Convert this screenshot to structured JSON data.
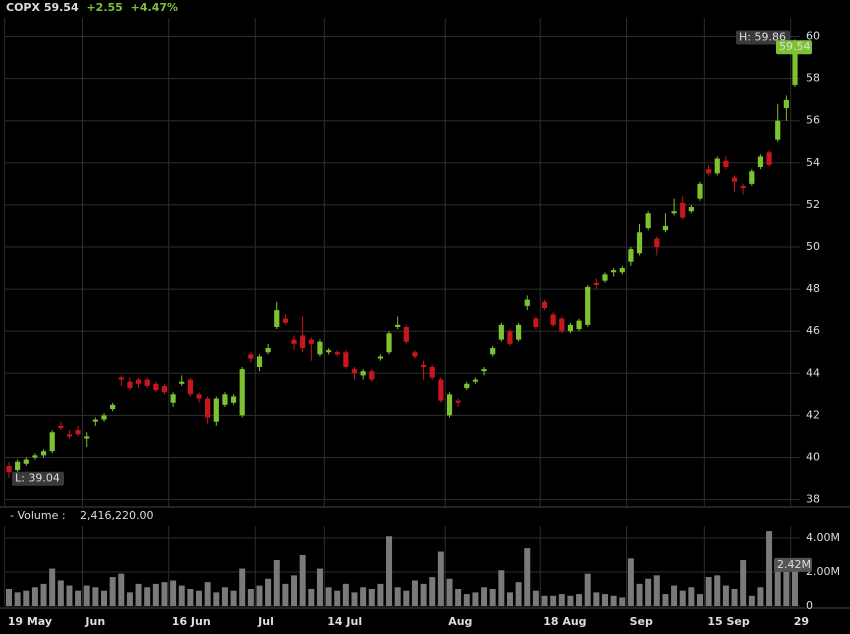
{
  "chart_data": {
    "type": "candlestick",
    "header": {
      "symbol": "COPX",
      "price": "59.54",
      "change": "+2.55",
      "change_pct": "+4.47%"
    },
    "categories": [
      "19 May",
      null,
      null,
      null,
      null,
      null,
      null,
      null,
      null,
      "Jun",
      null,
      null,
      null,
      null,
      null,
      null,
      null,
      null,
      null,
      "16 Jun",
      null,
      null,
      null,
      null,
      null,
      null,
      null,
      null,
      null,
      "Jul",
      null,
      null,
      null,
      null,
      null,
      null,
      null,
      "14 Jul",
      null,
      null,
      null,
      null,
      null,
      null,
      null,
      null,
      null,
      null,
      null,
      null,
      null,
      "Aug",
      null,
      null,
      null,
      null,
      null,
      null,
      null,
      null,
      null,
      null,
      "18 Aug",
      null,
      null,
      null,
      null,
      null,
      null,
      null,
      null,
      null,
      "Sep",
      null,
      null,
      null,
      null,
      null,
      null,
      null,
      null,
      "15 Sep",
      null,
      null,
      null,
      null,
      null,
      null,
      null,
      null,
      null,
      "29"
    ],
    "open": [
      39.6,
      39.4,
      39.7,
      40.0,
      40.1,
      40.3,
      41.5,
      41.1,
      41.3,
      40.9,
      41.7,
      41.8,
      42.3,
      43.8,
      43.6,
      43.7,
      43.7,
      43.5,
      43.4,
      42.6,
      43.5,
      43.7,
      43.0,
      42.8,
      41.7,
      42.5,
      42.6,
      42.0,
      44.9,
      44.3,
      45.0,
      46.2,
      46.6,
      45.6,
      45.8,
      45.6,
      44.9,
      45.0,
      45.0,
      45.0,
      44.2,
      43.9,
      44.1,
      44.7,
      45.0,
      46.2,
      46.2,
      45.0,
      44.4,
      44.3,
      43.7,
      42.0,
      42.7,
      43.3,
      43.6,
      44.1,
      44.9,
      45.6,
      46.0,
      45.6,
      47.2,
      46.6,
      47.4,
      46.8,
      46.6,
      46.0,
      46.1,
      46.3,
      48.3,
      48.4,
      48.8,
      48.8,
      49.3,
      49.7,
      50.9,
      50.4,
      50.8,
      51.6,
      52.1,
      51.7,
      52.3,
      53.7,
      53.5,
      54.1,
      53.3,
      52.9,
      53.0,
      53.8,
      54.5,
      55.1,
      56.6,
      57.7
    ],
    "high": [
      39.8,
      39.9,
      40.0,
      40.2,
      40.4,
      41.3,
      41.7,
      41.3,
      41.5,
      41.2,
      41.9,
      42.1,
      42.6,
      43.9,
      43.8,
      43.8,
      43.8,
      43.6,
      43.5,
      43.1,
      43.9,
      43.8,
      43.1,
      42.9,
      42.9,
      43.1,
      43.0,
      44.3,
      45.0,
      44.9,
      45.4,
      47.4,
      46.8,
      45.8,
      46.7,
      45.7,
      45.6,
      45.2,
      45.1,
      45.1,
      44.3,
      44.2,
      44.2,
      44.9,
      46.0,
      46.7,
      46.3,
      45.1,
      44.6,
      44.4,
      43.8,
      43.1,
      42.8,
      43.6,
      43.8,
      44.3,
      45.3,
      46.4,
      46.1,
      46.4,
      47.7,
      46.7,
      47.5,
      46.9,
      46.7,
      46.4,
      46.6,
      48.2,
      48.5,
      48.8,
      49.0,
      49.1,
      50.0,
      51.1,
      51.7,
      50.5,
      51.6,
      52.3,
      52.4,
      52.0,
      53.1,
      53.9,
      54.3,
      54.3,
      53.4,
      53.0,
      53.7,
      54.4,
      54.6,
      56.8,
      57.2,
      59.86
    ],
    "low": [
      39.04,
      39.3,
      39.6,
      39.9,
      40.0,
      40.2,
      41.3,
      40.9,
      41.0,
      40.5,
      41.5,
      41.7,
      42.2,
      43.4,
      43.2,
      43.3,
      43.3,
      43.1,
      43.0,
      42.4,
      43.4,
      42.9,
      42.6,
      41.6,
      41.5,
      42.4,
      42.5,
      41.9,
      44.5,
      44.1,
      44.9,
      46.1,
      46.3,
      45.1,
      45.0,
      44.6,
      44.8,
      44.9,
      44.8,
      44.2,
      43.7,
      43.7,
      43.6,
      44.6,
      44.9,
      46.1,
      45.4,
      44.7,
      43.7,
      43.7,
      42.6,
      41.9,
      42.4,
      43.2,
      43.5,
      43.9,
      44.8,
      45.5,
      45.3,
      45.5,
      47.0,
      46.1,
      47.0,
      46.2,
      45.9,
      45.9,
      46.0,
      46.2,
      48.0,
      48.3,
      48.6,
      48.7,
      49.1,
      49.6,
      50.8,
      49.6,
      50.7,
      51.5,
      51.3,
      51.6,
      52.2,
      53.4,
      53.4,
      53.7,
      52.6,
      52.5,
      52.9,
      53.7,
      53.8,
      55.0,
      56.0,
      57.6
    ],
    "close": [
      39.3,
      39.8,
      39.9,
      40.1,
      40.3,
      41.2,
      41.4,
      41.0,
      41.1,
      41.0,
      41.8,
      42.0,
      42.5,
      43.7,
      43.3,
      43.5,
      43.4,
      43.2,
      43.1,
      43.0,
      43.6,
      43.0,
      42.8,
      41.9,
      42.8,
      43.0,
      42.9,
      44.2,
      44.7,
      44.8,
      45.2,
      47.0,
      46.4,
      45.4,
      45.2,
      45.4,
      45.5,
      45.1,
      44.9,
      44.3,
      44.0,
      44.1,
      43.7,
      44.8,
      45.9,
      46.3,
      45.5,
      44.8,
      44.3,
      43.8,
      42.7,
      43.0,
      42.6,
      43.5,
      43.7,
      44.2,
      45.2,
      46.3,
      45.4,
      46.3,
      47.5,
      46.2,
      47.1,
      46.3,
      46.0,
      46.3,
      46.5,
      48.1,
      48.2,
      48.7,
      48.9,
      49.0,
      49.9,
      50.7,
      51.6,
      50.0,
      51.0,
      51.7,
      51.4,
      51.9,
      53.0,
      53.5,
      54.2,
      53.8,
      53.1,
      52.8,
      53.6,
      54.3,
      53.9,
      56.0,
      56.99,
      59.54
    ],
    "volume": [
      1.0,
      0.8,
      0.9,
      1.1,
      1.3,
      2.2,
      1.5,
      1.2,
      0.9,
      1.2,
      1.1,
      0.9,
      1.7,
      1.9,
      0.8,
      1.3,
      1.1,
      1.3,
      1.4,
      1.5,
      1.2,
      1.0,
      0.9,
      1.4,
      0.8,
      1.1,
      0.9,
      2.2,
      1.0,
      1.2,
      1.6,
      2.7,
      1.3,
      1.8,
      3.0,
      1.0,
      2.2,
      1.1,
      0.9,
      1.3,
      0.8,
      1.1,
      1.0,
      1.3,
      4.1,
      1.1,
      0.9,
      1.5,
      1.3,
      1.7,
      3.2,
      1.6,
      1.0,
      0.7,
      0.8,
      1.1,
      1.0,
      2.1,
      0.8,
      1.4,
      3.4,
      0.9,
      0.6,
      0.6,
      0.7,
      0.6,
      0.7,
      1.9,
      0.8,
      0.7,
      0.6,
      0.5,
      2.8,
      1.3,
      1.6,
      1.8,
      0.7,
      1.2,
      0.9,
      1.1,
      0.7,
      1.7,
      1.8,
      1.2,
      1.0,
      2.7,
      0.6,
      1.1,
      4.4,
      2.4,
      2.0,
      2.41622
    ],
    "up_color": "#7cc232",
    "down_color": "#c8161d",
    "volume_color": "#7a7a7a",
    "ylim": [
      37.6,
      60.5
    ],
    "yticks": [
      38,
      40,
      42,
      44,
      46,
      48,
      50,
      52,
      54,
      56,
      58,
      60
    ],
    "volume_label": "- Volume :",
    "volume_value": "2,416,220.00",
    "volume_ylim": [
      0,
      4.7
    ],
    "volume_yticks": [
      0,
      {
        "value": 2,
        "label": "2.00M"
      },
      {
        "value": 4,
        "label": "4.00M"
      }
    ],
    "high_label": "H: 59.86",
    "low_label": "L: 39.04",
    "last_price_label": "59.54",
    "last_volume_label": "2.42M",
    "grid": true
  }
}
